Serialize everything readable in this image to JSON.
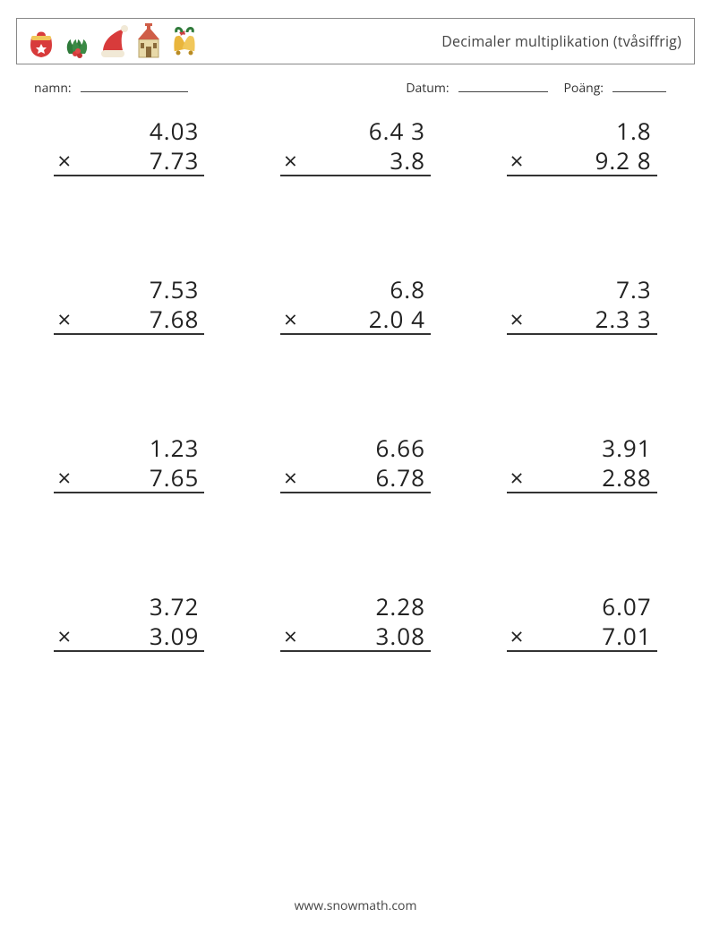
{
  "header": {
    "title": "Decimaler multiplikation (tvåsiffrig)",
    "icons": [
      "gift-sack",
      "holly",
      "santa-hat",
      "church",
      "bells"
    ]
  },
  "meta": {
    "name_label": "namn:",
    "date_label": "Datum:",
    "score_label": "Poäng:"
  },
  "style": {
    "font_color": "#333333",
    "border_color": "#888888",
    "underline_color": "#333333",
    "background": "#ffffff",
    "problem_fontsize_pt": 20,
    "title_fontsize_pt": 12,
    "meta_fontsize_pt": 11,
    "columns": 3,
    "rows": 4,
    "icon_colors": {
      "gift-sack": {
        "bag": "#d83b3b",
        "band": "#f1c75a",
        "star": "#ffffff"
      },
      "holly": {
        "leaf": "#2f7a3a",
        "berry": "#d83b3b"
      },
      "santa-hat": {
        "hat": "#d83b3b",
        "trim": "#f1e9d6",
        "pom": "#f1e9d6"
      },
      "church": {
        "wall": "#e8d9a8",
        "roof": "#cf5d47",
        "windows": "#8a6a3a"
      },
      "bells": {
        "bell": "#e9b53c",
        "bow": "#c94040",
        "leaf": "#2f7a3a"
      }
    }
  },
  "operator_symbol": "×",
  "problems": [
    {
      "a": "4.03",
      "b": "7.73"
    },
    {
      "a": "6.4 3",
      "b": "3.8"
    },
    {
      "a": "1.8",
      "b": "9.2 8"
    },
    {
      "a": "7.53",
      "b": "7.68"
    },
    {
      "a": "6.8",
      "b": "2.0 4"
    },
    {
      "a": "7.3",
      "b": "2.3 3"
    },
    {
      "a": "1.23",
      "b": "7.65"
    },
    {
      "a": "6.66",
      "b": "6.78"
    },
    {
      "a": "3.91",
      "b": "2.88"
    },
    {
      "a": "3.72",
      "b": "3.09"
    },
    {
      "a": "2.28",
      "b": "3.08"
    },
    {
      "a": "6.07",
      "b": "7.01"
    }
  ],
  "footer": "www.snowmath.com"
}
